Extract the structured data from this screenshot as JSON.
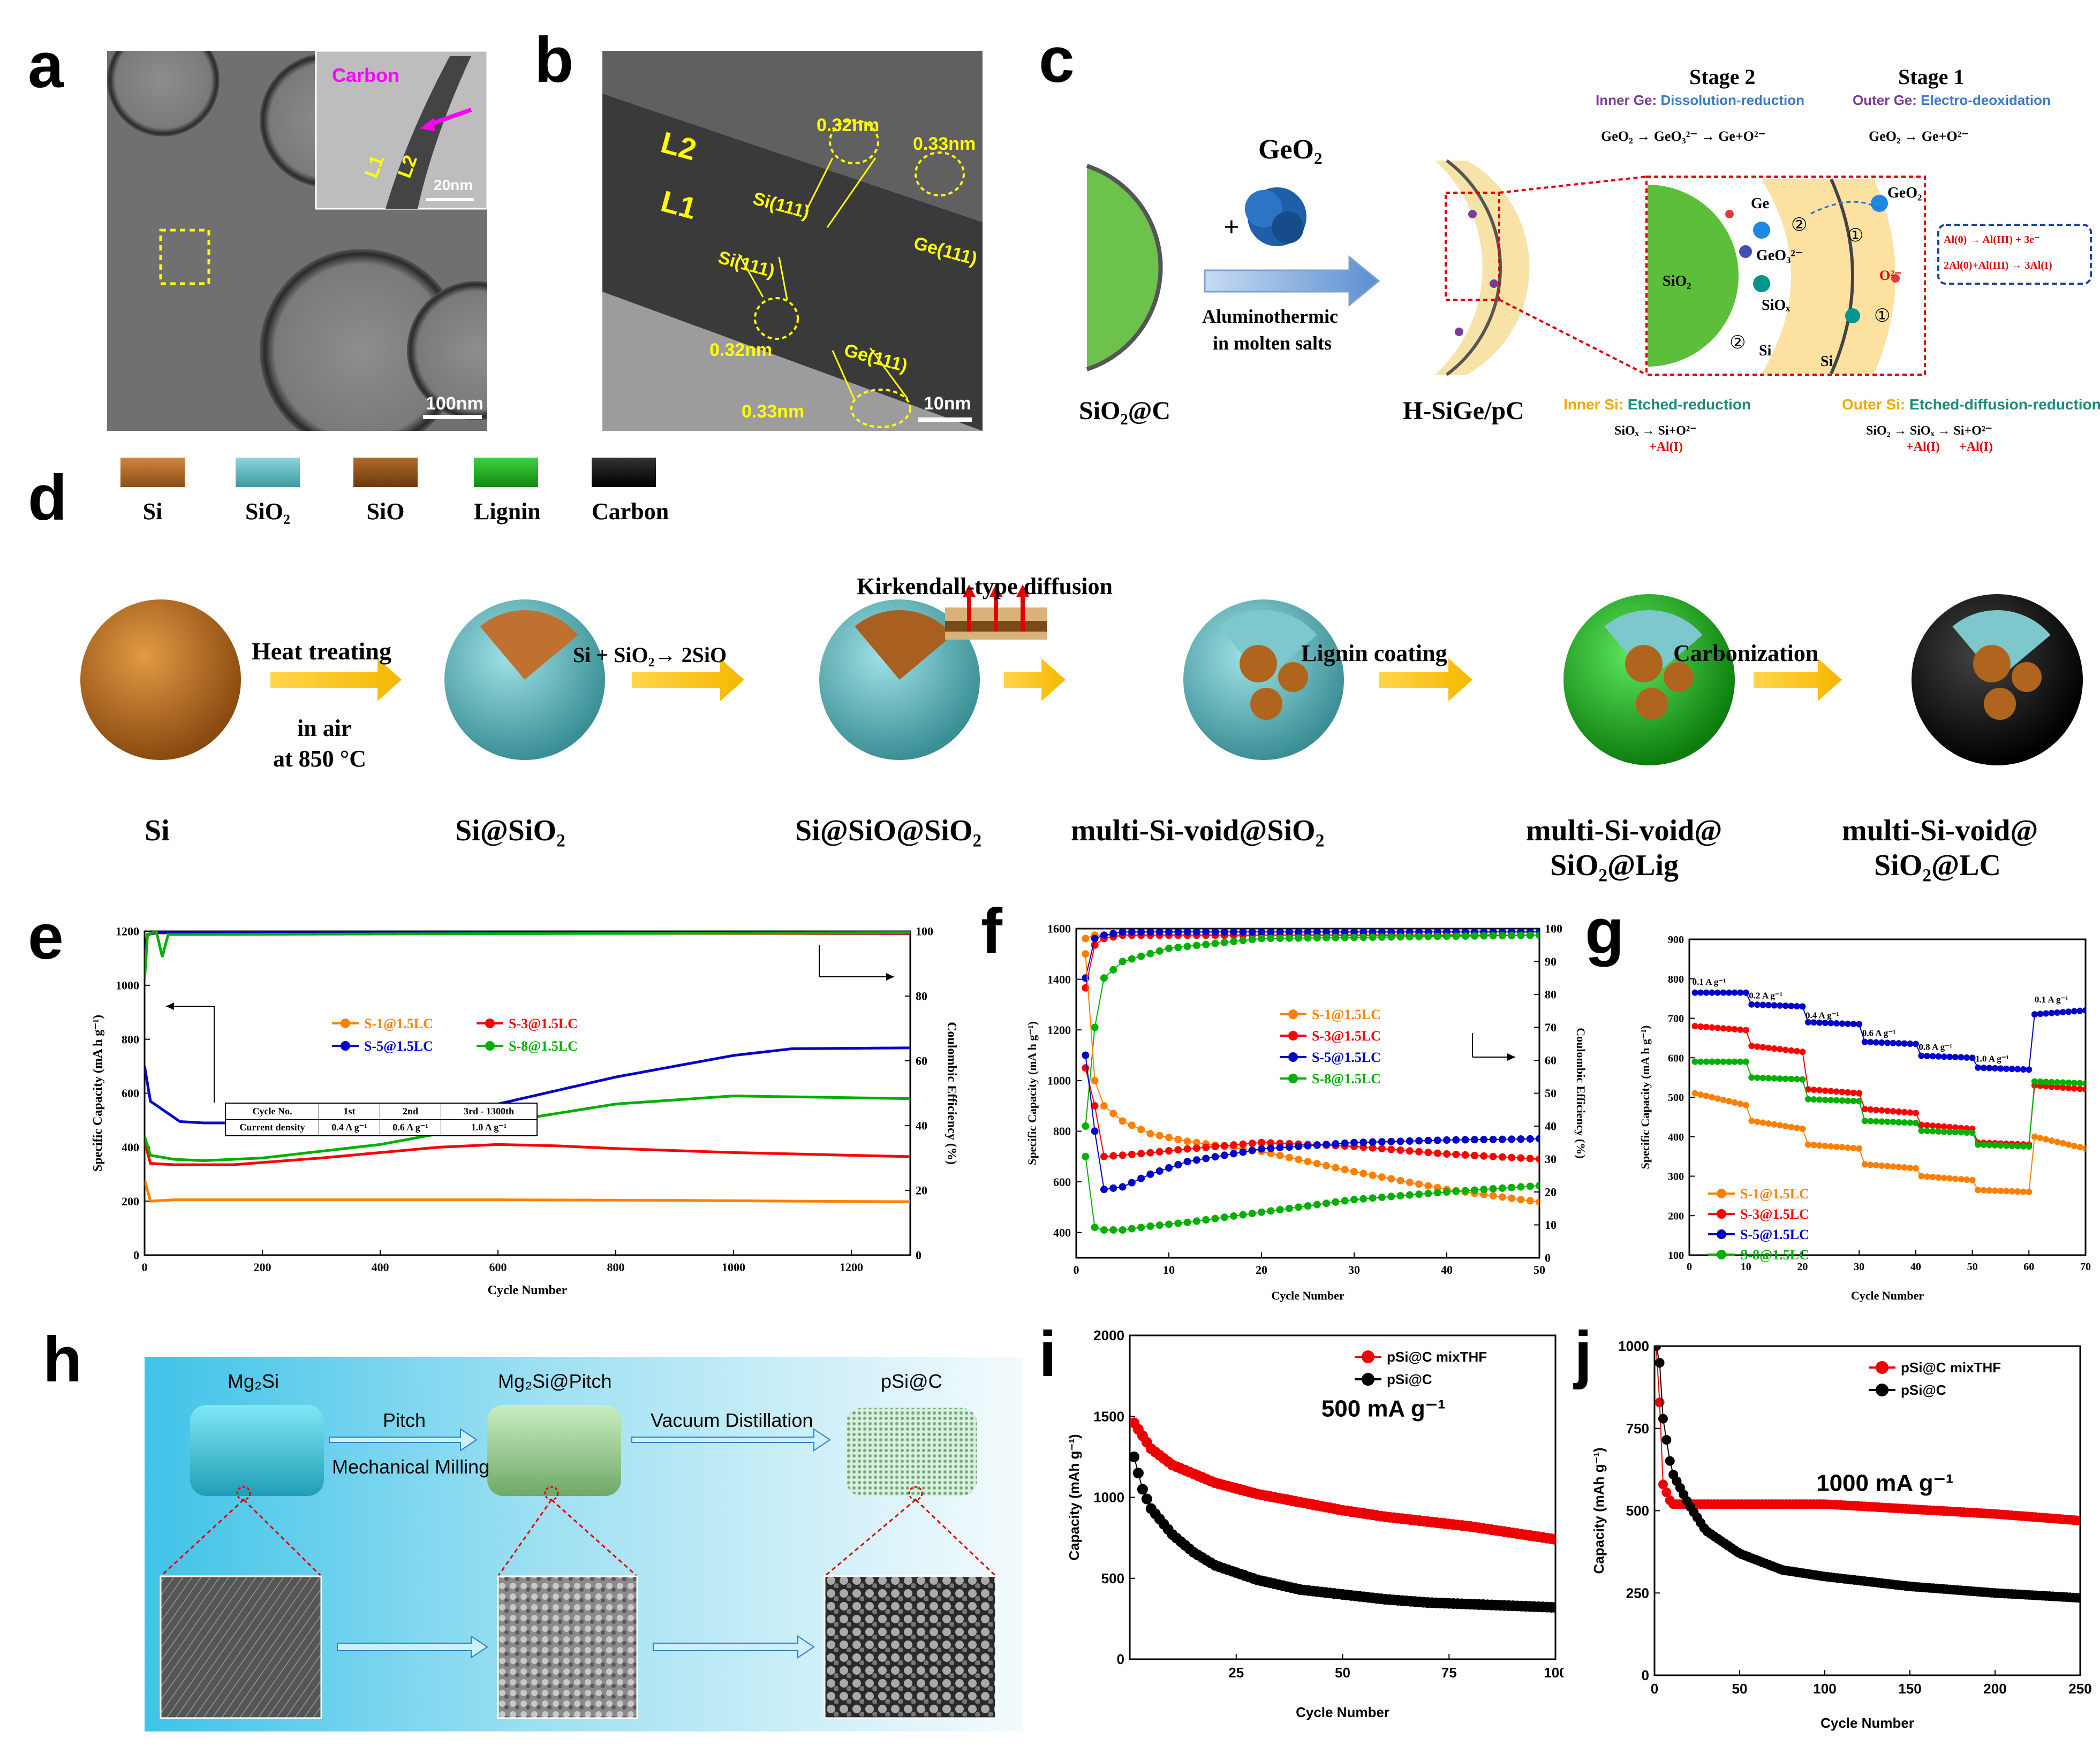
{
  "panel_labels": {
    "a": "a",
    "b": "b",
    "c": "c",
    "d": "d",
    "e": "e",
    "f": "f",
    "g": "g",
    "h": "h",
    "i": "i",
    "j": "j"
  },
  "panel_a": {
    "carbon": "Carbon",
    "l1": "L1",
    "l2": "L2",
    "scale_inset": "20nm",
    "scale_main": "100nm"
  },
  "panel_b": {
    "l1": "L1",
    "l2": "L2",
    "d1": "0.32nm",
    "d2": "0.33nm",
    "d3": "0.32nm",
    "d4": "0.33nm",
    "si1": "Si(111)",
    "si2": "Si(111)",
    "ge1": "Ge(111)",
    "ge2": "Ge(111)",
    "scale": "10nm"
  },
  "panel_c": {
    "sio2c": "SiO₂@C",
    "geo2": "GeO₂",
    "plus": "+",
    "arrow_top": "Aluminothermic",
    "arrow_bot": "in molten salts",
    "product": "H-SiGe/pC",
    "stage2": "Stage 2",
    "stage1": "Stage 1",
    "inner_ge": "Inner Ge:",
    "inner_ge_desc": "Dissolution-reduction",
    "outer_ge": "Outer Ge:",
    "outer_ge_desc": "Electro-deoxidation",
    "eq_left": "GeO₂ → GeO₃²⁻ → Ge+O²⁻",
    "eq_right": "GeO₂ → Ge+O²⁻",
    "ge": "Ge",
    "geo2_in": "GeO₂",
    "geo3": "GeO₃²⁻",
    "sio2_in": "SiO₂",
    "siox": "SiOₓ",
    "si1": "Si",
    "si2": "Si",
    "o2": "O²⁻",
    "n1": "①",
    "n2": "②",
    "n3": "①",
    "n4": "②",
    "al_eq1": "Al(0) → Al(III) + 3e⁻",
    "al_eq2": "2Al(0)+Al(III) → 3Al(I)",
    "inner_si": "Inner Si:",
    "inner_si_desc": "Etched-reduction",
    "outer_si": "Outer Si:",
    "outer_si_desc": "Etched-diffusion-reduction",
    "eq_bl": "SiOₓ → Si+O²⁻",
    "eq_bl2": "+Al(I)",
    "eq_br": "SiO₂ → SiOₓ → Si+O²⁻",
    "eq_br2": "+Al(I)      +Al(I)"
  },
  "panel_d": {
    "legend": [
      {
        "label": "Si",
        "color": "#b0651e"
      },
      {
        "label": "SiO₂",
        "color": "#5fb6bb"
      },
      {
        "label": "SiO",
        "color": "#8c4f17"
      },
      {
        "label": "Lignin",
        "color": "#1fad1f"
      },
      {
        "label": "Carbon",
        "color": "#111111"
      }
    ],
    "step1_top": "Heat treating",
    "step1_b1": "in air",
    "step1_b2": "at 850 °C",
    "step2": "Si + SiO₂→ 2SiO",
    "step3": "Kirkendall-type diffusion",
    "step4": "Lignin coating",
    "step5": "Carbonization",
    "names": [
      "Si",
      "Si@SiO₂",
      "Si@SiO@SiO₂",
      "multi-Si-void@SiO₂",
      "multi-Si-void@",
      "SiO₂@Lig",
      "multi-Si-void@",
      "SiO₂@LC"
    ]
  },
  "panel_e_table": {
    "r1c1": "Cycle No.",
    "r1c2": "1st",
    "r1c3": "2nd",
    "r1c4": "3rd - 1300th",
    "r2c1": "Current density",
    "r2c2": "0.4 A g⁻¹",
    "r2c3": "0.6 A g⁻¹",
    "r2c4": "1.0 A g⁻¹"
  },
  "panel_g_rates": [
    "0.1 A g⁻¹",
    "0.2 A g⁻¹",
    "0.4 A g⁻¹",
    "0.6 A g⁻¹",
    "0.8 A g⁻¹",
    "1.0 A g⁻¹",
    "0.1 A g⁻¹"
  ],
  "panel_h": {
    "mg2si": "Mg₂Si",
    "pitch_label": "Mg₂Si@Pitch",
    "psic": "pSi@C",
    "arrow1_top": "Pitch",
    "arrow1_bot": "Mechanical Milling",
    "arrow2": "Vacuum Distillation"
  },
  "chart_data": [
    {
      "id": "e",
      "type": "line",
      "xlabel": "Cycle Number",
      "ylabel": "Specific Capacity (mA h g⁻¹)",
      "y2label": "Coulombic Efficiency (%)",
      "xlim": [
        0,
        1300
      ],
      "ylim": [
        0,
        1200
      ],
      "y2lim": [
        0,
        100
      ],
      "xticks": [
        0,
        200,
        400,
        600,
        800,
        1000,
        1200
      ],
      "yticks": [
        0,
        200,
        400,
        600,
        800,
        1000,
        1200
      ],
      "y2ticks": [
        0,
        20,
        40,
        60,
        80,
        100
      ],
      "series": [
        {
          "name": "S-1@1.5LC",
          "color": "#ff8000",
          "x": [
            0,
            10,
            50,
            100,
            300,
            600,
            900,
            1100,
            1300
          ],
          "y": [
            280,
            200,
            205,
            205,
            205,
            205,
            203,
            200,
            198
          ]
        },
        {
          "name": "S-3@1.5LC",
          "color": "#ff0000",
          "x": [
            0,
            10,
            50,
            150,
            300,
            500,
            600,
            700,
            800,
            1000,
            1300
          ],
          "y": [
            420,
            340,
            335,
            335,
            360,
            400,
            410,
            405,
            395,
            380,
            365
          ]
        },
        {
          "name": "S-5@1.5LC",
          "color": "#0000cc",
          "x": [
            0,
            10,
            30,
            60,
            100,
            200,
            400,
            600,
            800,
            1000,
            1100,
            1300
          ],
          "y": [
            700,
            570,
            540,
            495,
            490,
            490,
            500,
            560,
            660,
            740,
            765,
            768
          ]
        },
        {
          "name": "S-8@1.5LC",
          "color": "#00b000",
          "x": [
            0,
            10,
            50,
            100,
            200,
            400,
            600,
            800,
            1000,
            1300
          ],
          "y": [
            440,
            370,
            355,
            350,
            360,
            410,
            490,
            560,
            590,
            580
          ]
        }
      ],
      "ce_series": [
        {
          "name": "S-1@1.5LC",
          "color": "#ff8000",
          "x": [
            0,
            5,
            20,
            1300
          ],
          "y": [
            90,
            99,
            99.5,
            99.5
          ]
        },
        {
          "name": "S-3@1.5LC",
          "color": "#ff0000",
          "x": [
            0,
            5,
            20,
            1300
          ],
          "y": [
            92,
            99,
            99.5,
            99.3
          ]
        },
        {
          "name": "S-5@1.5LC",
          "color": "#0000cc",
          "x": [
            0,
            5,
            20,
            1300
          ],
          "y": [
            94,
            99,
            99.6,
            99.5
          ]
        },
        {
          "name": "S-8@1.5LC",
          "color": "#00b000",
          "x": [
            0,
            5,
            20,
            30,
            40,
            1300
          ],
          "y": [
            85,
            99,
            100,
            92,
            99,
            99.6
          ]
        }
      ]
    },
    {
      "id": "f",
      "type": "scatter",
      "xlabel": "Cycle Number",
      "ylabel": "Specific Capacity (mA h g⁻¹)",
      "y2label": "Coulombic Efficiency (%)",
      "xlim": [
        0,
        50
      ],
      "ylim": [
        300,
        1600
      ],
      "y2lim": [
        0,
        100
      ],
      "xticks": [
        0,
        10,
        20,
        30,
        40,
        50
      ],
      "yticks": [
        400,
        600,
        800,
        1000,
        1200,
        1400,
        1600
      ],
      "y2ticks": [
        0,
        10,
        20,
        30,
        40,
        50,
        60,
        70,
        80,
        90,
        100
      ],
      "series": [
        {
          "name": "S-1@1.5LC",
          "color": "#ff8000",
          "x": [
            1,
            2,
            3,
            5,
            8,
            12,
            20,
            30,
            40,
            50
          ],
          "y": [
            1500,
            1000,
            900,
            840,
            790,
            760,
            720,
            640,
            570,
            520
          ]
        },
        {
          "name": "S-3@1.5LC",
          "color": "#ff0000",
          "x": [
            1,
            2,
            3,
            5,
            8,
            12,
            20,
            30,
            40,
            50
          ],
          "y": [
            1050,
            900,
            700,
            705,
            715,
            730,
            755,
            740,
            710,
            690
          ]
        },
        {
          "name": "S-5@1.5LC",
          "color": "#0000cc",
          "x": [
            1,
            2,
            3,
            5,
            8,
            12,
            20,
            30,
            40,
            50
          ],
          "y": [
            1100,
            800,
            570,
            580,
            630,
            680,
            730,
            755,
            765,
            770
          ]
        },
        {
          "name": "S-8@1.5LC",
          "color": "#00b000",
          "x": [
            1,
            2,
            3,
            5,
            8,
            12,
            20,
            30,
            40,
            50
          ],
          "y": [
            700,
            420,
            410,
            410,
            425,
            440,
            480,
            530,
            560,
            585
          ]
        }
      ],
      "ce_series": [
        {
          "name": "S-1@1.5LC",
          "color": "#ff8000",
          "x": [
            1,
            2,
            3,
            5,
            10,
            50
          ],
          "y": [
            97,
            98,
            98,
            98,
            98,
            98
          ]
        },
        {
          "name": "S-3@1.5LC",
          "color": "#ff0000",
          "x": [
            1,
            2,
            3,
            5,
            10,
            50
          ],
          "y": [
            82,
            95,
            97,
            98,
            98,
            98
          ]
        },
        {
          "name": "S-5@1.5LC",
          "color": "#0000cc",
          "x": [
            1,
            2,
            3,
            5,
            10,
            50
          ],
          "y": [
            85,
            97,
            98,
            99,
            99,
            99
          ]
        },
        {
          "name": "S-8@1.5LC",
          "color": "#00b000",
          "x": [
            1,
            2,
            3,
            5,
            10,
            20,
            50
          ],
          "y": [
            40,
            70,
            85,
            90,
            94,
            97,
            98
          ]
        }
      ]
    },
    {
      "id": "g",
      "type": "scatter",
      "xlabel": "Cycle Number",
      "ylabel": "Specific Capacity (mA h g⁻¹)",
      "xlim": [
        0,
        70
      ],
      "ylim": [
        100,
        900
      ],
      "xticks": [
        0,
        10,
        20,
        30,
        40,
        50,
        60,
        70
      ],
      "yticks": [
        100,
        200,
        300,
        400,
        500,
        600,
        700,
        800,
        900
      ],
      "series": [
        {
          "name": "S-1@1.5LC",
          "color": "#ff8000",
          "x": [
            1,
            10,
            11,
            20,
            21,
            30,
            31,
            40,
            41,
            50,
            51,
            60,
            61,
            70
          ],
          "y": [
            510,
            480,
            440,
            420,
            380,
            370,
            330,
            320,
            300,
            290,
            265,
            260,
            400,
            370
          ]
        },
        {
          "name": "S-3@1.5LC",
          "color": "#ff0000",
          "x": [
            1,
            10,
            11,
            20,
            21,
            30,
            31,
            40,
            41,
            50,
            51,
            60,
            61,
            70
          ],
          "y": [
            680,
            670,
            630,
            615,
            520,
            510,
            470,
            460,
            430,
            420,
            385,
            380,
            530,
            520
          ]
        },
        {
          "name": "S-5@1.5LC",
          "color": "#0000cc",
          "x": [
            1,
            10,
            11,
            20,
            21,
            30,
            31,
            40,
            41,
            50,
            51,
            60,
            61,
            70
          ],
          "y": [
            765,
            765,
            735,
            730,
            690,
            685,
            640,
            635,
            605,
            600,
            575,
            570,
            710,
            720
          ]
        },
        {
          "name": "S-8@1.5LC",
          "color": "#00b000",
          "x": [
            1,
            10,
            11,
            20,
            21,
            30,
            31,
            40,
            41,
            50,
            51,
            60,
            61,
            70
          ],
          "y": [
            590,
            590,
            550,
            545,
            495,
            490,
            440,
            435,
            415,
            410,
            380,
            375,
            540,
            535
          ]
        }
      ]
    },
    {
      "id": "i",
      "type": "scatter",
      "xlabel": "Cycle Number",
      "ylabel": "Capacity (mAh g⁻¹)",
      "annotation": "500 mA g⁻¹",
      "xlim": [
        0,
        100
      ],
      "ylim": [
        0,
        2000
      ],
      "xticks": [
        25,
        50,
        75,
        100
      ],
      "yticks": [
        0,
        500,
        1000,
        1500,
        2000
      ],
      "series": [
        {
          "name": "pSi@C mixTHF",
          "color": "#ee0000",
          "x": [
            1,
            5,
            10,
            20,
            30,
            40,
            50,
            60,
            70,
            80,
            90,
            100
          ],
          "y": [
            1460,
            1300,
            1200,
            1090,
            1020,
            970,
            920,
            880,
            850,
            820,
            780,
            740
          ]
        },
        {
          "name": "pSi@C",
          "color": "#000000",
          "x": [
            1,
            3,
            5,
            10,
            15,
            20,
            30,
            40,
            50,
            60,
            70,
            80,
            90,
            100
          ],
          "y": [
            1250,
            1050,
            930,
            770,
            660,
            580,
            490,
            430,
            400,
            370,
            350,
            340,
            330,
            320
          ]
        }
      ]
    },
    {
      "id": "j",
      "type": "scatter",
      "xlabel": "Cycle Number",
      "ylabel": "Capacity (mAh g⁻¹)",
      "annotation": "1000 mA g⁻¹",
      "xlim": [
        0,
        250
      ],
      "ylim": [
        0,
        1000
      ],
      "xticks": [
        0,
        50,
        100,
        150,
        200,
        250
      ],
      "yticks": [
        0,
        250,
        500,
        750,
        1000
      ],
      "series": [
        {
          "name": "pSi@C mixTHF",
          "color": "#ee0000",
          "x": [
            1,
            3,
            5,
            10,
            20,
            50,
            100,
            150,
            200,
            250
          ],
          "y": [
            1000,
            830,
            580,
            520,
            520,
            520,
            520,
            505,
            490,
            470
          ]
        },
        {
          "name": "pSi@C",
          "color": "#000000",
          "x": [
            1,
            3,
            5,
            10,
            20,
            30,
            50,
            75,
            100,
            150,
            200,
            250
          ],
          "y": [
            1000,
            950,
            780,
            620,
            520,
            440,
            370,
            320,
            300,
            270,
            250,
            235
          ]
        }
      ]
    }
  ]
}
